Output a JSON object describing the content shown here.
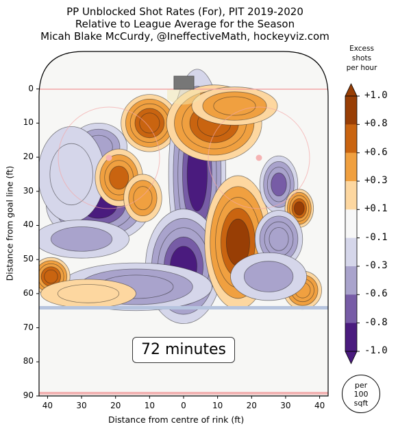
{
  "title": {
    "line1": "PP Unblocked Shot Rates (For), PIT 2019-2020",
    "line2": "Relative to League Average for the Season",
    "line3": "Micah Blake McCurdy, @IneffectiveMath, hockeyviz.com"
  },
  "chart_data": {
    "type": "heatmap",
    "xlabel": "Distance from centre of rink (ft)",
    "ylabel": "Distance from goal line (ft)",
    "xlim": [
      -42.5,
      42.5
    ],
    "ylim": [
      -11,
      90
    ],
    "x_ticks": [
      "40",
      "30",
      "20",
      "10",
      "0",
      "10",
      "20",
      "30",
      "40"
    ],
    "y_ticks": [
      "0",
      "10",
      "20",
      "30",
      "40",
      "50",
      "60",
      "70",
      "80",
      "90"
    ],
    "annotation": "72 minutes",
    "colorbar": {
      "title_lines": [
        "Excess",
        "shots",
        "per hour"
      ],
      "tick_labels": [
        "+1.0",
        "+0.8",
        "+0.6",
        "+0.3",
        "+0.1",
        "-0.1",
        "-0.3",
        "-0.6",
        "-0.8",
        "-1.0"
      ],
      "units_lines": [
        "per",
        "100",
        "sqft"
      ],
      "levels": [
        1.0,
        0.8,
        0.6,
        0.3,
        0.1,
        -0.1,
        -0.3,
        -0.6,
        -0.8,
        -1.0
      ],
      "colors": [
        "#983e05",
        "#c96410",
        "#f0a040",
        "#fdd7a0",
        "#f7f7f7",
        "#d5d6ea",
        "#a9a3cc",
        "#775ca6",
        "#4a1b7e"
      ]
    },
    "blobs": [
      {
        "x": -25,
        "y": 34,
        "rx": 11,
        "ry": 8,
        "value": -0.85
      },
      {
        "x": -25,
        "y": 17,
        "rx": 6,
        "ry": 5,
        "value": -0.5
      },
      {
        "x": -33,
        "y": 25,
        "rx": 7,
        "ry": 10,
        "value": -0.25
      },
      {
        "x": -19,
        "y": 26,
        "rx": 5,
        "ry": 6,
        "value": 0.7
      },
      {
        "x": -10,
        "y": 10,
        "rx": 6,
        "ry": 6,
        "value": 0.75
      },
      {
        "x": -12,
        "y": 32,
        "rx": 4,
        "ry": 5,
        "value": 0.4
      },
      {
        "x": 4,
        "y": 25,
        "rx": 6,
        "ry": 22,
        "value": -0.9
      },
      {
        "x": 0,
        "y": 52,
        "rx": 8,
        "ry": 12,
        "value": -0.9
      },
      {
        "x": -14,
        "y": 58,
        "rx": 16,
        "ry": 5,
        "value": -0.5
      },
      {
        "x": 9,
        "y": 10,
        "rx": 10,
        "ry": 8,
        "value": 0.75
      },
      {
        "x": 15,
        "y": 5,
        "rx": 9,
        "ry": 4,
        "value": 0.4
      },
      {
        "x": 16,
        "y": 45,
        "rx": 7,
        "ry": 14,
        "value": 0.85
      },
      {
        "x": 28,
        "y": 28,
        "rx": 4,
        "ry": 6,
        "value": -0.6
      },
      {
        "x": 34,
        "y": 35,
        "rx": 3,
        "ry": 4,
        "value": 0.9
      },
      {
        "x": 28,
        "y": 44,
        "rx": 5,
        "ry": 6,
        "value": -0.55
      },
      {
        "x": 35,
        "y": 59,
        "rx": 4,
        "ry": 4,
        "value": 0.6
      },
      {
        "x": -39,
        "y": 55,
        "rx": 4,
        "ry": 4,
        "value": 0.8
      },
      {
        "x": -30,
        "y": 44,
        "rx": 10,
        "ry": 4,
        "value": -0.3
      },
      {
        "x": 25,
        "y": 55,
        "rx": 8,
        "ry": 5,
        "value": -0.3
      },
      {
        "x": -28,
        "y": 60,
        "rx": 10,
        "ry": 3,
        "value": 0.3
      }
    ]
  }
}
